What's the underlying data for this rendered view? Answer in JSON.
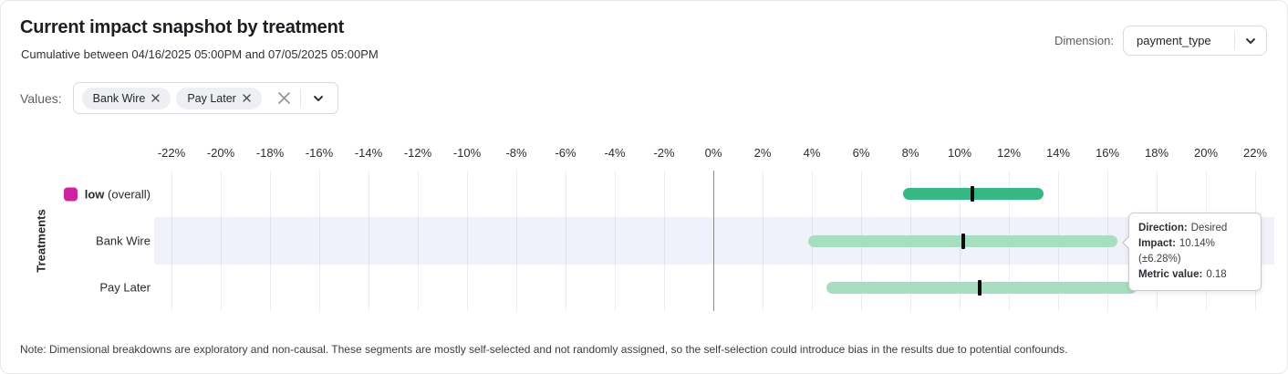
{
  "header": {
    "title": "Current impact snapshot by treatment",
    "subtitle": "Cumulative between 04/16/2025 05:00PM and 07/05/2025 05:00PM",
    "dimension_label": "Dimension:",
    "dimension_value": "payment_type"
  },
  "filters": {
    "values_label": "Values:",
    "chips": [
      {
        "label": "Bank Wire"
      },
      {
        "label": "Pay Later"
      }
    ]
  },
  "chart_data": {
    "type": "bar",
    "subtype": "horizontal-interval-impact",
    "ylabel": "Treatments",
    "x_unit": "%",
    "xlim": [
      -22.7,
      22.8
    ],
    "x_ticks": [
      -22,
      -20,
      -18,
      -16,
      -14,
      -12,
      -10,
      -8,
      -6,
      -4,
      -2,
      0,
      2,
      4,
      6,
      8,
      10,
      12,
      14,
      16,
      18,
      20,
      22
    ],
    "grid": true,
    "rows": [
      {
        "label": "low",
        "label_suffix": " (overall)",
        "swatch_color": "#d0219e",
        "impact": 10.5,
        "low": 7.7,
        "high": 13.4,
        "bar_color": "#36b783",
        "highlighted": false
      },
      {
        "label": "Bank Wire",
        "impact": 10.14,
        "low": 3.86,
        "high": 16.42,
        "bar_color": "#a8dec0",
        "highlighted": true
      },
      {
        "label": "Pay Later",
        "impact": 10.8,
        "low": 4.6,
        "high": 17.2,
        "bar_color": "#a8dec0",
        "highlighted": false
      }
    ]
  },
  "tooltip": {
    "direction_label": "Direction:",
    "direction_value": "Desired",
    "impact_label": "Impact:",
    "impact_value": "10.14% (±6.28%)",
    "metric_label": "Metric value:",
    "metric_value": "0.18"
  },
  "note": "Note: Dimensional breakdowns are exploratory and non-causal. These segments are mostly self-selected and not randomly assigned, so the self-selection could introduce bias in the results due to potential confounds.",
  "colors": {
    "overall_bar": "#36b783",
    "segment_bar": "#a8dec0",
    "legend_swatch": "#d0219e",
    "row_highlight": "#f1f1fc",
    "center_tick": "#0c0d0e",
    "zero_line": "#8a8a8a"
  }
}
